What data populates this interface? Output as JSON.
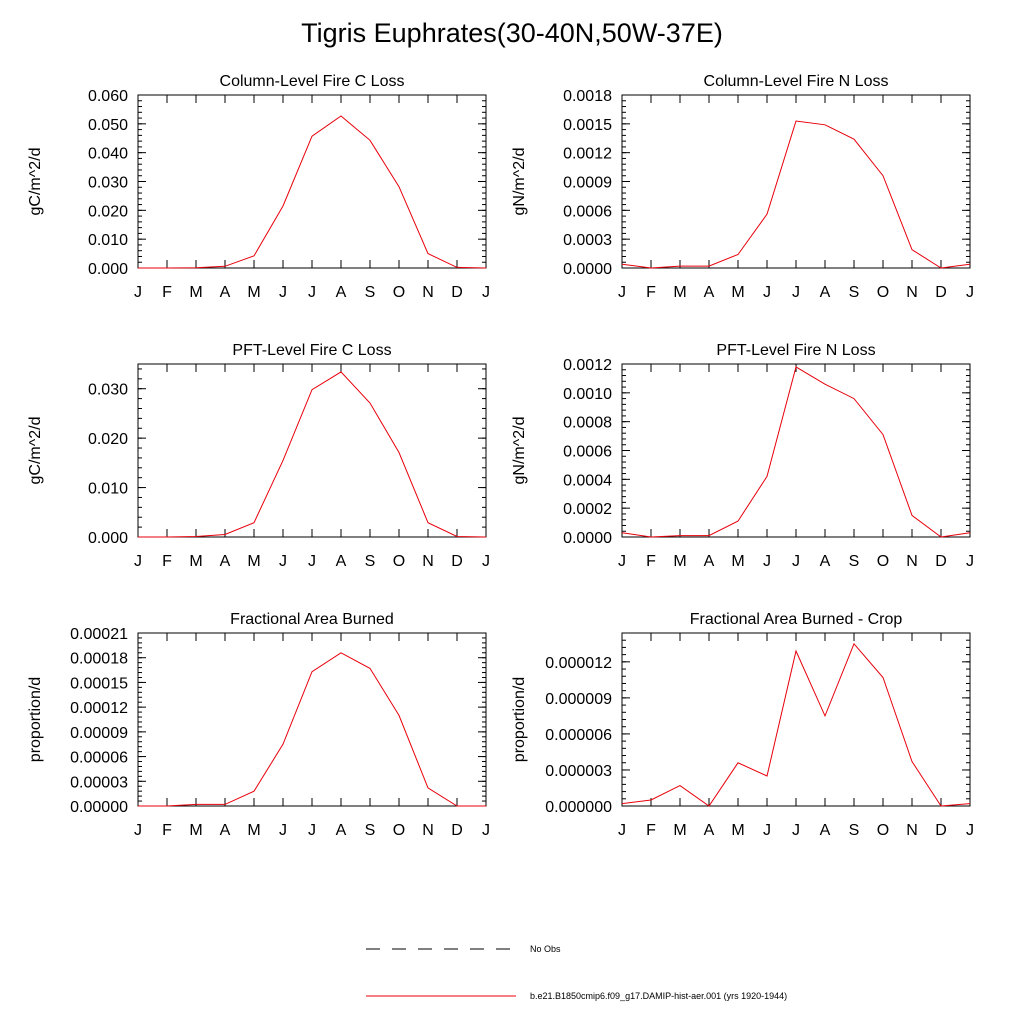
{
  "title": "Tigris Euphrates(30-40N,50W-37E)",
  "legend": {
    "obs_label": "No Obs",
    "model_label": "b.e21.B1850cmip6.f09_g17.DAMIP-hist-aer.001 (yrs 1920-1944)"
  },
  "colors": {
    "model_line": "#e8000b",
    "obs_line": "#000000"
  },
  "chart_data": [
    {
      "type": "line",
      "title": "Column-Level Fire C Loss",
      "ylabel": "gC/m^2/d",
      "categories": [
        "J",
        "F",
        "M",
        "A",
        "M",
        "J",
        "J",
        "A",
        "S",
        "O",
        "N",
        "D",
        "J"
      ],
      "ylim": [
        0,
        0.06
      ],
      "yticks": [
        "0.000",
        "0.010",
        "0.020",
        "0.030",
        "0.040",
        "0.050",
        "0.060"
      ],
      "series": [
        {
          "values": [
            0.0,
            0.0,
            0.0001,
            0.0006,
            0.0042,
            0.0215,
            0.0457,
            0.0527,
            0.0443,
            0.0282,
            0.005,
            0.0002,
            0.0
          ]
        }
      ]
    },
    {
      "type": "line",
      "title": "Column-Level Fire N Loss",
      "ylabel": "gN/m^2/d",
      "categories": [
        "J",
        "F",
        "M",
        "A",
        "M",
        "J",
        "J",
        "A",
        "S",
        "O",
        "N",
        "D",
        "J"
      ],
      "ylim": [
        0,
        0.0018
      ],
      "yticks": [
        "0.0000",
        "0.0003",
        "0.0006",
        "0.0009",
        "0.0012",
        "0.0015",
        "0.0018"
      ],
      "series": [
        {
          "values": [
            4e-05,
            0.0,
            2e-05,
            2e-05,
            0.00014,
            0.00056,
            0.00153,
            0.00149,
            0.00134,
            0.00096,
            0.00019,
            0.0,
            4e-05
          ]
        }
      ]
    },
    {
      "type": "line",
      "title": "PFT-Level Fire C Loss",
      "ylabel": "gC/m^2/d",
      "categories": [
        "J",
        "F",
        "M",
        "A",
        "M",
        "J",
        "J",
        "A",
        "S",
        "O",
        "N",
        "D",
        "J"
      ],
      "ylim": [
        0,
        0.035
      ],
      "yticks": [
        "0.000",
        "0.010",
        "0.020",
        "0.030"
      ],
      "yticks_values": [
        0,
        0.01,
        0.02,
        0.03
      ],
      "series": [
        {
          "values": [
            0.0,
            0.0,
            0.0001,
            0.0005,
            0.0029,
            0.0155,
            0.0298,
            0.0334,
            0.0271,
            0.0171,
            0.0029,
            0.0001,
            0.0
          ]
        }
      ]
    },
    {
      "type": "line",
      "title": "PFT-Level Fire N Loss",
      "ylabel": "gN/m^2/d",
      "categories": [
        "J",
        "F",
        "M",
        "A",
        "M",
        "J",
        "J",
        "A",
        "S",
        "O",
        "N",
        "D",
        "J"
      ],
      "ylim": [
        0,
        0.0012
      ],
      "yticks": [
        "0.0000",
        "0.0002",
        "0.0004",
        "0.0006",
        "0.0008",
        "0.0010",
        "0.0012"
      ],
      "series": [
        {
          "values": [
            3e-05,
            0.0,
            1e-05,
            1e-05,
            0.00011,
            0.00042,
            0.00118,
            0.00106,
            0.00096,
            0.00071,
            0.00015,
            0.0,
            3e-05
          ]
        }
      ]
    },
    {
      "type": "line",
      "title": "Fractional Area Burned",
      "ylabel": "proportion/d",
      "categories": [
        "J",
        "F",
        "M",
        "A",
        "M",
        "J",
        "J",
        "A",
        "S",
        "O",
        "N",
        "D",
        "J"
      ],
      "ylim": [
        0,
        0.00021
      ],
      "yticks": [
        "0.00000",
        "0.00003",
        "0.00006",
        "0.00009",
        "0.00012",
        "0.00015",
        "0.00018",
        "0.00021"
      ],
      "series": [
        {
          "values": [
            0.0,
            0.0,
            2e-06,
            2e-06,
            1.8e-05,
            7.5e-05,
            0.000163,
            0.000186,
            0.000167,
            0.00011,
            2.2e-05,
            0.0,
            0.0
          ]
        }
      ]
    },
    {
      "type": "line",
      "title": "Fractional Area Burned - Crop",
      "ylabel": "proportion/d",
      "categories": [
        "J",
        "F",
        "M",
        "A",
        "M",
        "J",
        "J",
        "A",
        "S",
        "O",
        "N",
        "D",
        "J"
      ],
      "ylim": [
        0,
        1.44e-05
      ],
      "yticks": [
        "0.000000",
        "0.000003",
        "0.000006",
        "0.000009",
        "0.000012"
      ],
      "yticks_values": [
        0,
        3e-06,
        6e-06,
        9e-06,
        1.2e-05
      ],
      "series": [
        {
          "values": [
            2e-07,
            5e-07,
            1.7e-06,
            0.0,
            3.6e-06,
            2.5e-06,
            1.29e-05,
            7.5e-06,
            1.35e-05,
            1.07e-05,
            3.7e-06,
            0.0,
            2e-07
          ]
        }
      ]
    }
  ]
}
